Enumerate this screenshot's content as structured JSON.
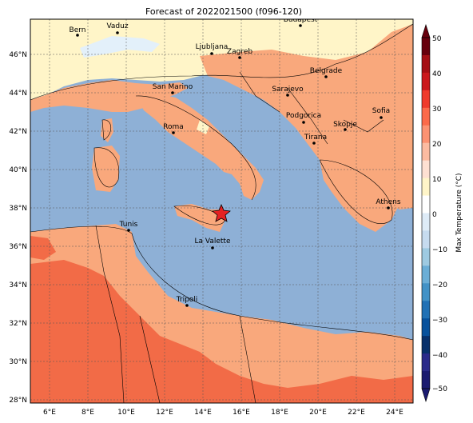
{
  "title": "Forecast of 2022021500 (f096-120)",
  "lon_ticks": [
    "6°E",
    "8°E",
    "10°E",
    "12°E",
    "14°E",
    "16°E",
    "18°E",
    "20°E",
    "22°E",
    "24°E"
  ],
  "lat_ticks": [
    "46°N",
    "44°N",
    "42°N",
    "40°N",
    "38°N",
    "36°N",
    "34°N",
    "32°N",
    "30°N",
    "28°N"
  ],
  "colorbar": {
    "label": "Max Temperature (°C)",
    "ticks": [
      "50",
      "40",
      "30",
      "20",
      "10",
      "0",
      "−10",
      "−20",
      "−30",
      "−40",
      "−50"
    ],
    "colors": [
      "#67000d",
      "#a50f15",
      "#cb181d",
      "#ef3b2c",
      "#fb6a4a",
      "#fc9272",
      "#fcbba1",
      "#fee0d2",
      "#fff5c8",
      "#ffffff",
      "#deebf7",
      "#c6dbef",
      "#9ecae1",
      "#6baed6",
      "#4292c6",
      "#2171b5",
      "#08519c",
      "#08306b",
      "#2a2a8a",
      "#1a1a70"
    ]
  },
  "cities": [
    {
      "name": "Bern"
    },
    {
      "name": "Vaduz"
    },
    {
      "name": "Budapest"
    },
    {
      "name": "Ljubljana"
    },
    {
      "name": "Zagreb"
    },
    {
      "name": "Belgrade"
    },
    {
      "name": "San Marino"
    },
    {
      "name": "Sarajevo"
    },
    {
      "name": "Sofia"
    },
    {
      "name": "Podgorica"
    },
    {
      "name": "Skopje"
    },
    {
      "name": "Roma"
    },
    {
      "name": "Tirana"
    },
    {
      "name": "Athens"
    },
    {
      "name": "Tunis"
    },
    {
      "name": "La Valette"
    },
    {
      "name": "Tripoli"
    }
  ],
  "legend_colors": {
    "sea": "#8eb0d6",
    "warm": "#f9a87c",
    "warmer": "#f26b47",
    "mild": "#fff5c8",
    "cool": "#e3f0fa"
  }
}
